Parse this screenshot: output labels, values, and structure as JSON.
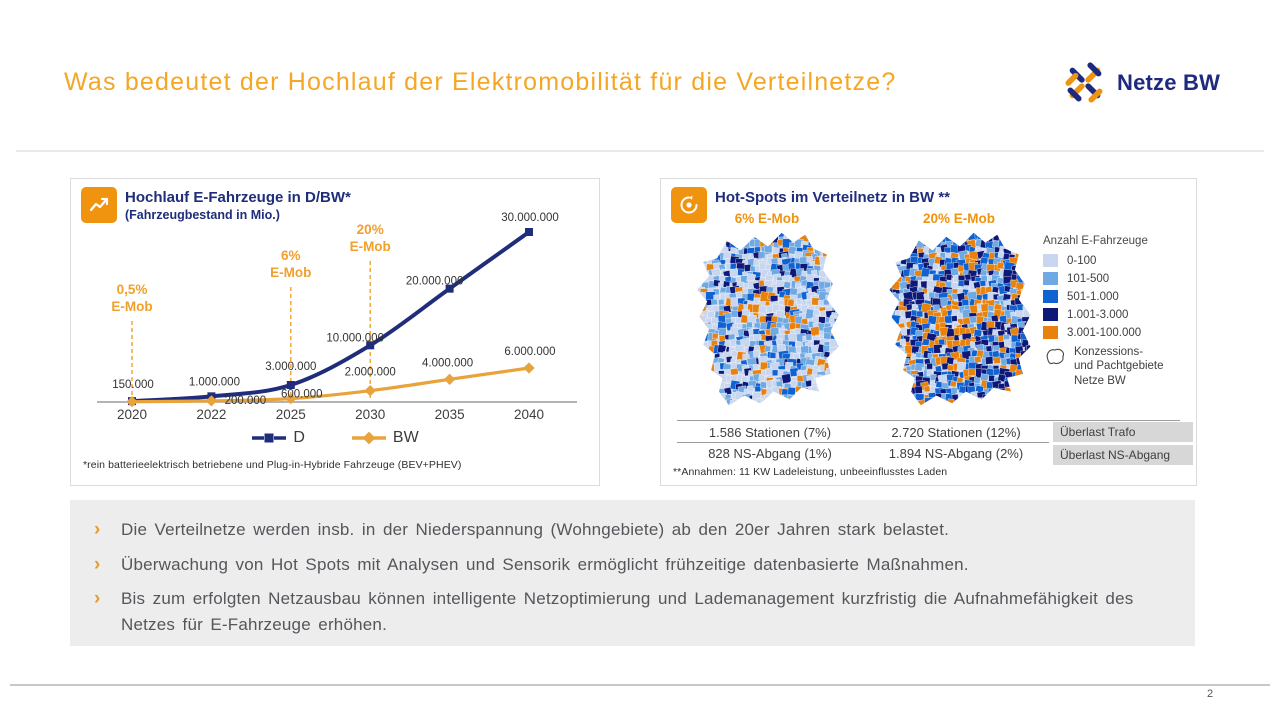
{
  "slide": {
    "title": "Was bedeutet der Hochlauf der Elektromobilität für die Verteilnetze?",
    "logo_text": "Netze BW",
    "page_number": "2"
  },
  "colors": {
    "title_orange": "#f5a624",
    "brand_blue": "#1e2a80",
    "series_d": "#1f2d7b",
    "series_bw": "#e8a33c",
    "annotation_orange": "#f0a02c",
    "takeaway_bg": "#ededee",
    "badge_bg": "#d7d7d7"
  },
  "chart_panel": {
    "icon": "line-chart-icon",
    "title": "Hochlauf E-Fahrzeuge in D/BW*",
    "subtitle": "(Fahrzeugbestand in Mio.)",
    "footnote": "*rein batterieelektrisch betriebene und Plug-in-Hybride Fahrzeuge (BEV+PHEV)"
  },
  "chart_data": {
    "type": "line",
    "categories": [
      "2020",
      "2022",
      "2025",
      "2030",
      "2035",
      "2040"
    ],
    "series": [
      {
        "name": "D",
        "color": "#1f2d7b",
        "marker": "square",
        "values": [
          150000,
          1000000,
          3000000,
          10000000,
          20000000,
          30000000
        ],
        "labels": [
          "150.000",
          "1.000.000",
          "3.000.000",
          "10.000.000",
          "20.000.000",
          "30.000.000"
        ]
      },
      {
        "name": "BW",
        "color": "#e8a33c",
        "marker": "diamond",
        "values": [
          50000,
          200000,
          600000,
          2000000,
          4000000,
          6000000
        ],
        "labels": [
          "",
          "200.000",
          "600.000",
          "2.000.000",
          "4.000.000",
          "6.000.000"
        ]
      }
    ],
    "annotations": [
      {
        "x": "2020",
        "label": "0,5%\nE-Mob"
      },
      {
        "x": "2025",
        "label": "6%\nE-Mob"
      },
      {
        "x": "2030",
        "label": "20%\nE-Mob"
      }
    ],
    "ylim": [
      0,
      30000000
    ],
    "grid": false,
    "legend_position": "bottom"
  },
  "hotspots_panel": {
    "icon": "hotspot-target-icon",
    "title": "Hot-Spots im Verteilnetz in BW **",
    "maps": [
      {
        "label": "6% E-Mob",
        "stations": "1.586 Stationen (7%)",
        "ns_abgang": "828 NS-Abgang (1%)"
      },
      {
        "label": "20% E-Mob",
        "stations": "2.720 Stationen (12%)",
        "ns_abgang": "1.894 NS-Abgang (2%)"
      }
    ],
    "row_badges": [
      "Überlast Trafo",
      "Überlast NS-Abgang"
    ],
    "legend_title": "Anzahl E-Fahrzeuge",
    "legend_items": [
      {
        "label": "0-100",
        "color": "#c9d6f0"
      },
      {
        "label": "101-500",
        "color": "#6fa9e4"
      },
      {
        "label": "501-1.000",
        "color": "#0f62d2"
      },
      {
        "label": "1.001-3.000",
        "color": "#0d1878"
      },
      {
        "label": "3.001-100.000",
        "color": "#e8820c"
      }
    ],
    "legend_outline_label": "Konzessions-\nund Pachtgebiete\nNetze BW",
    "footnote": "**Annahmen: 11 KW Ladeleistung, unbeeinflusstes Laden"
  },
  "takeaways": [
    "Die Verteilnetze werden insb. in der Niederspannung (Wohngebiete) ab den 20er Jahren stark belastet.",
    "Überwachung von Hot Spots mit Analysen und Sensorik ermöglicht frühzeitige datenbasierte Maßnahmen.",
    "Bis zum erfolgten Netzausbau können intelligente Netzoptimierung und Lademanagement kurzfristig die Aufnahmefähigkeit des Netzes für E-Fahrzeuge erhöhen."
  ]
}
